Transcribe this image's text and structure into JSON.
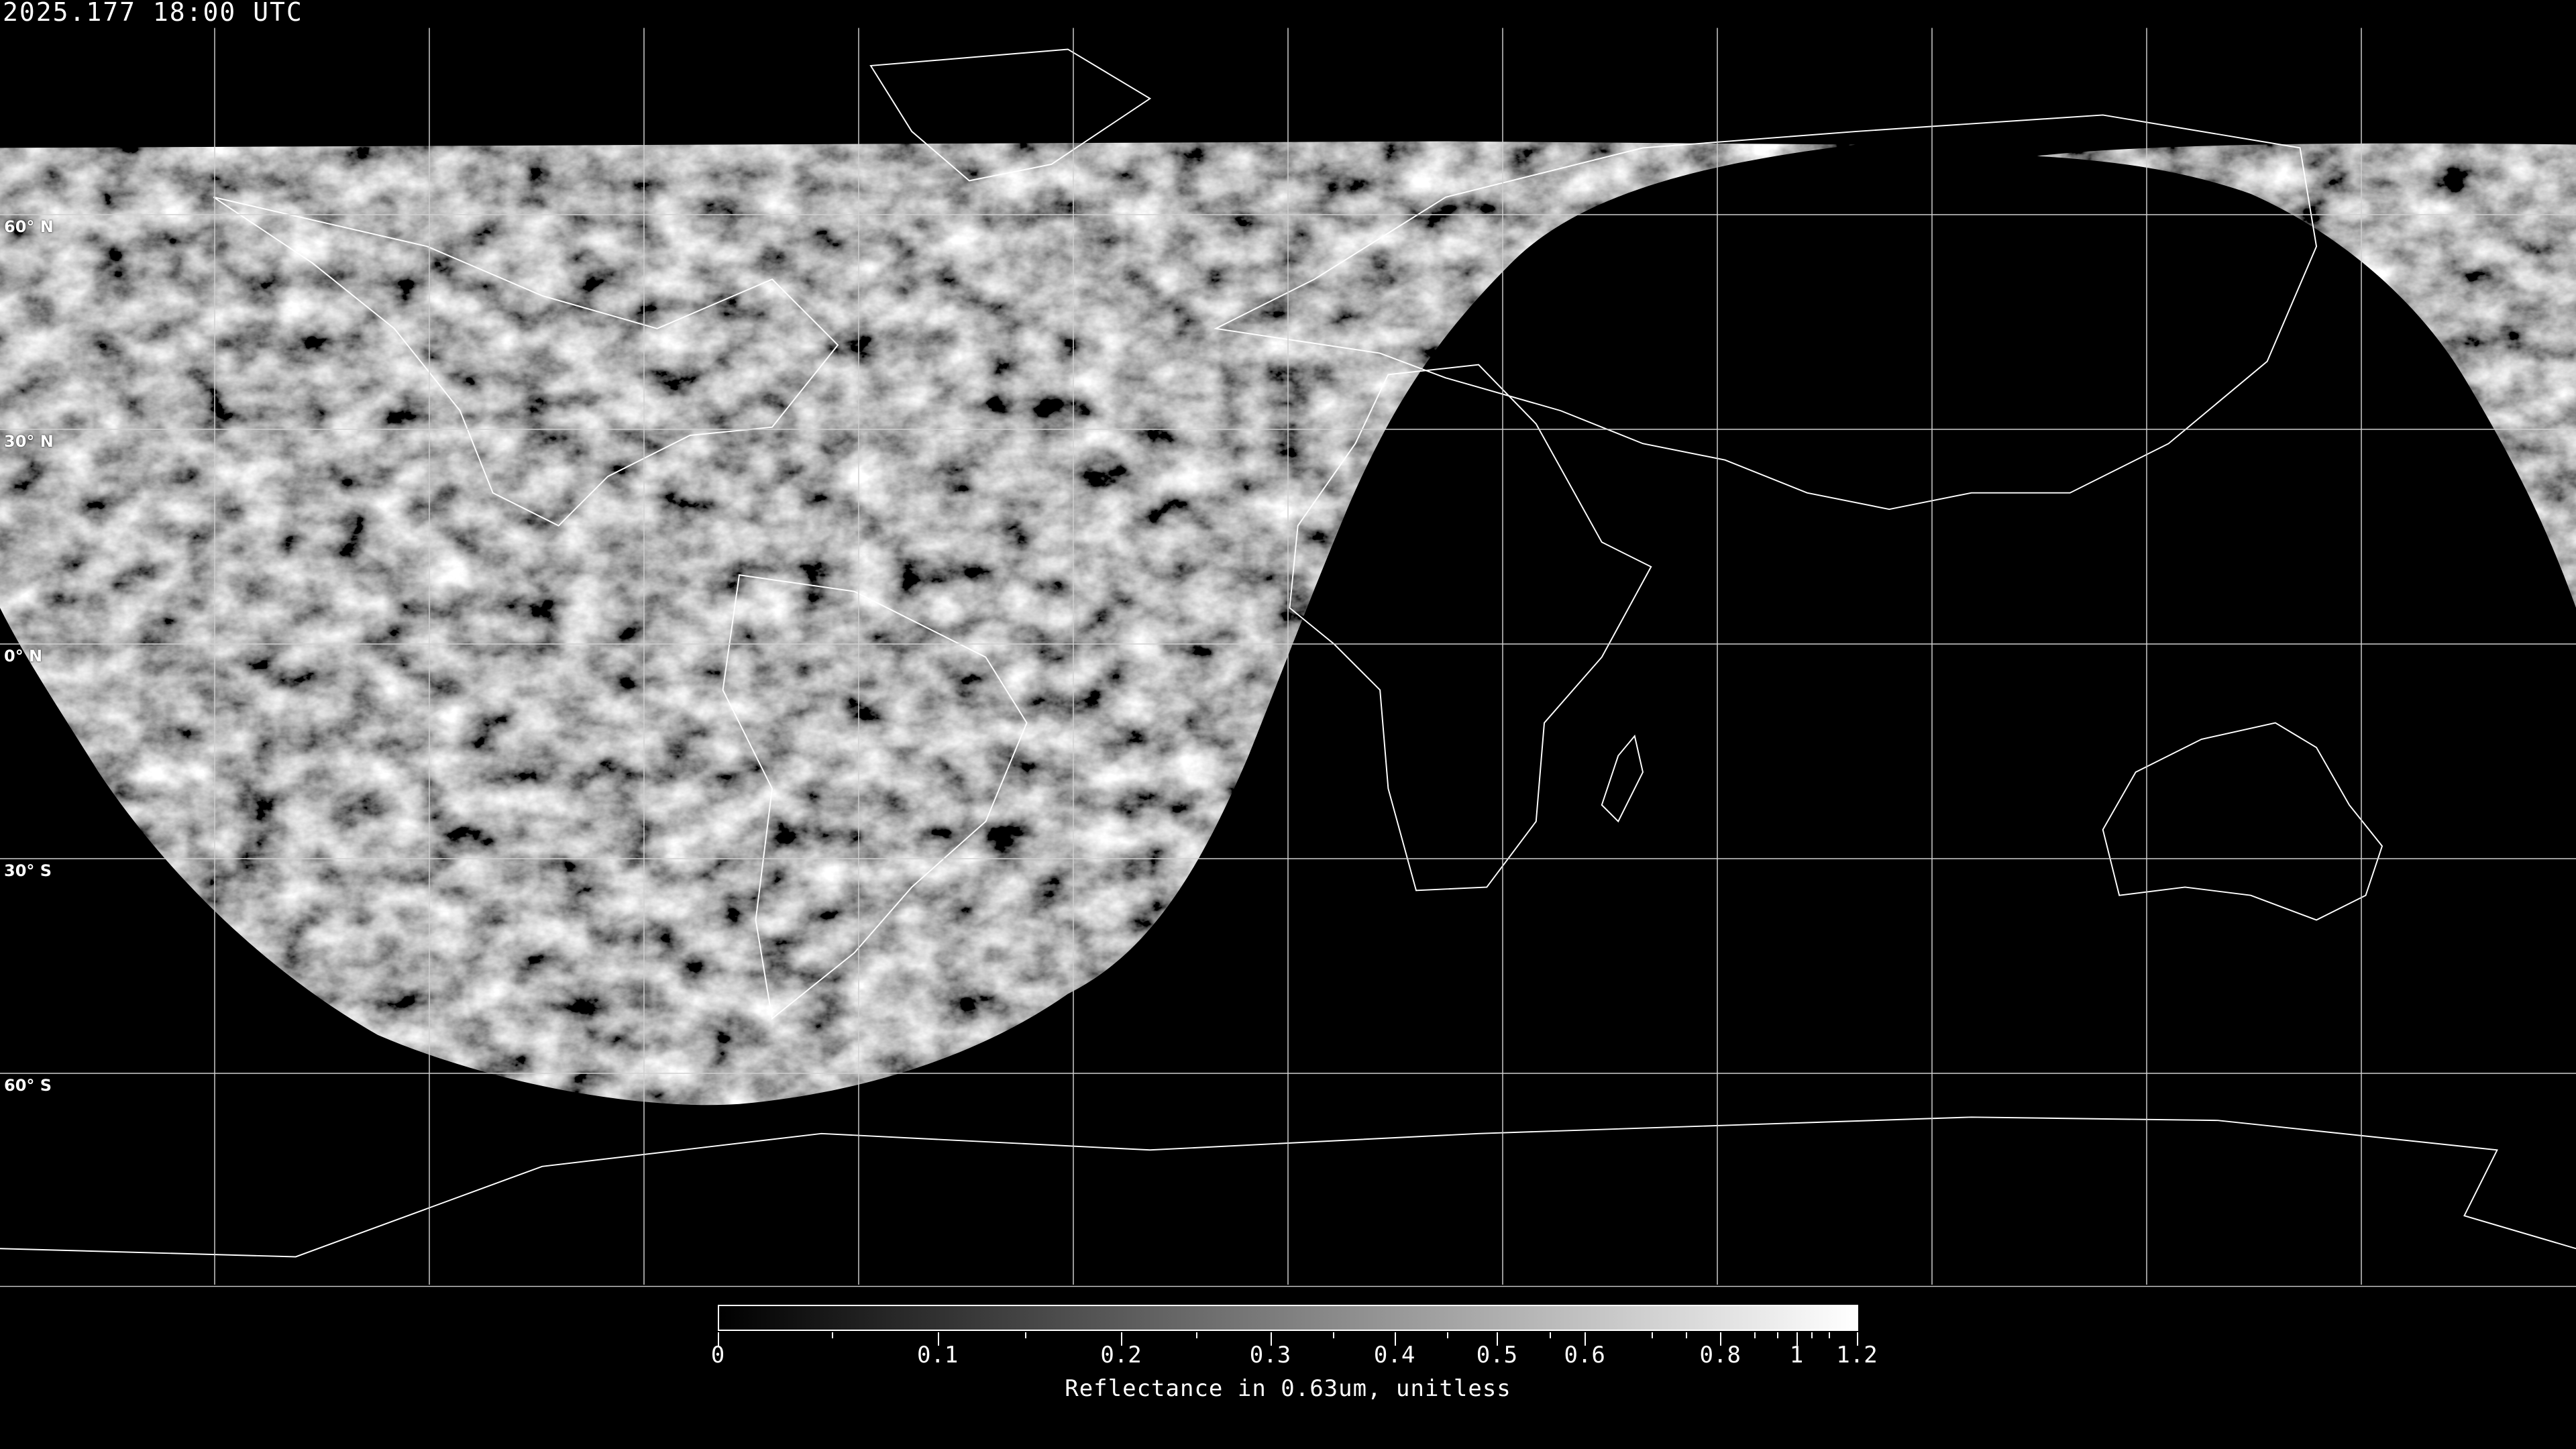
{
  "header": {
    "timestamp": "2025.177 18:00 UTC"
  },
  "map": {
    "projection": "equirectangular",
    "background_color": "#000000",
    "coastline_color": "#ffffff",
    "gridline_color": "#d0d0d0",
    "grid_spacing_deg": 30,
    "lat_labels": [
      "60° N",
      "30° N",
      "0° N",
      "30° S",
      "60° S"
    ],
    "imagery": "visible reflectance, daylit hemisphere (Americas / Atlantic), night side black"
  },
  "colorbar": {
    "colormap": "grayscale",
    "min_color": "#000000",
    "max_color": "#ffffff",
    "tick_labels": [
      "0",
      "0.1",
      "0.2",
      "0.3",
      "0.4",
      "0.5",
      "0.6",
      "0.8",
      "1",
      "1.2"
    ],
    "title": "Reflectance in 0.63um, unitless"
  }
}
